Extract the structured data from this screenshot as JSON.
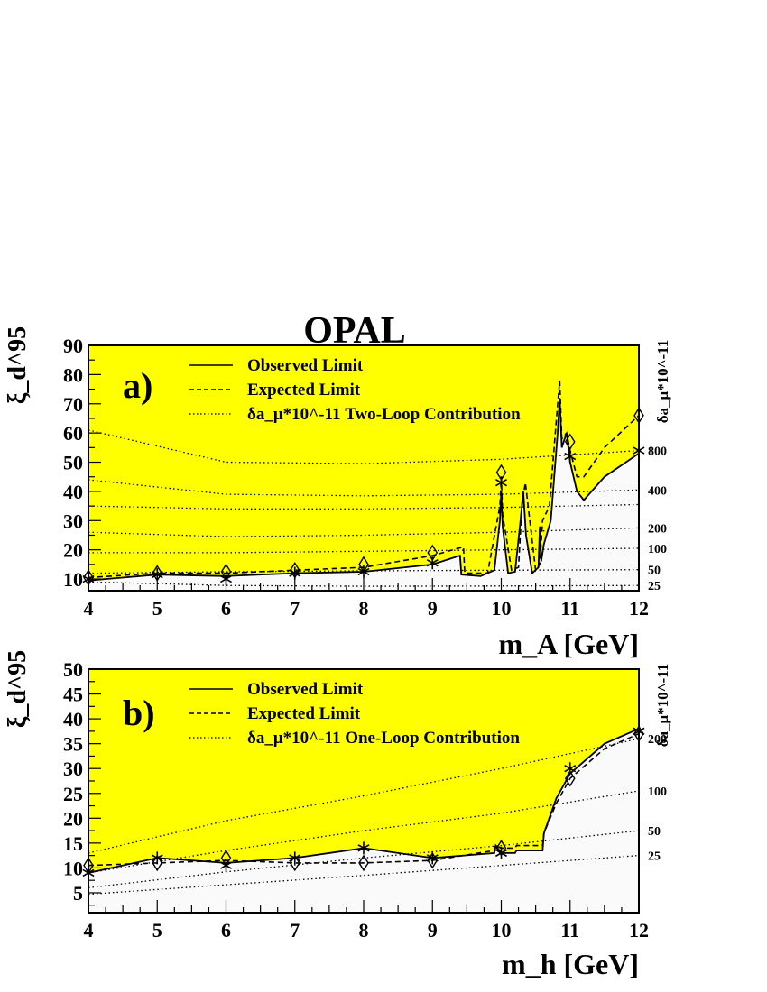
{
  "figure_title": "OPAL",
  "colors": {
    "excluded_fill": "#ffff00",
    "allowed_fill": "#fafafa",
    "line": "#000000"
  },
  "chart_data": [
    {
      "panel_label": "a)",
      "type": "line",
      "xlabel": "m_A [GeV]",
      "ylabel": "ξ_d^95",
      "right_axis_label": "δa_μ*10^-11",
      "xlim": [
        4,
        12
      ],
      "ylim": [
        6,
        90
      ],
      "x_ticks": [
        4,
        5,
        6,
        7,
        8,
        9,
        10,
        11,
        12
      ],
      "y_ticks": [
        10,
        20,
        30,
        40,
        50,
        60,
        70,
        80,
        90
      ],
      "legend": [
        {
          "style": "solid",
          "label": "Observed Limit"
        },
        {
          "style": "dashed",
          "label": "Expected Limit"
        },
        {
          "style": "dotted",
          "label": "δa_μ*10^-11 Two-Loop Contribution"
        }
      ],
      "series": [
        {
          "name": "Observed Limit",
          "style": "solid",
          "x": [
            4,
            5,
            6,
            7,
            8,
            9,
            9.4,
            9.42,
            9.7,
            9.9,
            9.98,
            10.0,
            10.02,
            10.1,
            10.2,
            10.28,
            10.32,
            10.36,
            10.45,
            10.54,
            10.56,
            10.58,
            10.62,
            10.72,
            10.82,
            10.85,
            10.88,
            10.95,
            11.0,
            11.1,
            11.2,
            11.5,
            12
          ],
          "y": [
            9.5,
            11.5,
            11,
            12,
            12.5,
            15,
            18,
            11.5,
            11,
            13,
            30,
            40,
            28,
            12,
            12.5,
            30,
            40,
            25,
            12,
            14,
            28,
            16,
            22,
            30,
            60,
            72,
            55,
            60,
            50,
            40,
            37,
            45,
            53
          ]
        },
        {
          "name": "Expected Limit",
          "style": "dashed",
          "x": [
            4,
            5,
            6,
            7,
            8,
            9,
            9.45,
            9.47,
            9.8,
            9.98,
            10.0,
            10.02,
            10.15,
            10.25,
            10.3,
            10.35,
            10.5,
            10.56,
            10.6,
            10.7,
            10.82,
            10.85,
            10.88,
            10.95,
            11.0,
            11.1,
            11.2,
            11.5,
            12
          ],
          "y": [
            10.5,
            12,
            12,
            13,
            14,
            18,
            21,
            12,
            12,
            35,
            45,
            32,
            13,
            14,
            35,
            43,
            13,
            15,
            30,
            35,
            70,
            78,
            58,
            60,
            54,
            45,
            45,
            55,
            66
          ]
        }
      ],
      "markers": {
        "observed_star": [
          [
            4,
            10
          ],
          [
            5,
            11.5
          ],
          [
            6,
            10
          ],
          [
            7,
            12
          ],
          [
            8,
            12.5
          ],
          [
            9,
            15.5
          ],
          [
            10,
            43
          ],
          [
            11,
            52
          ],
          [
            12,
            54
          ]
        ],
        "expected_diamond": [
          [
            4,
            10.5
          ],
          [
            5,
            12
          ],
          [
            6,
            12.5
          ],
          [
            7,
            13
          ],
          [
            8,
            15
          ],
          [
            9,
            19
          ],
          [
            10,
            46.5
          ],
          [
            11,
            57
          ],
          [
            12,
            66
          ]
        ]
      },
      "contours": [
        {
          "label": "25",
          "x": [
            4,
            6,
            8,
            10,
            12
          ],
          "y": [
            9,
            7.8,
            7.5,
            7.6,
            7.8
          ]
        },
        {
          "label": "50",
          "x": [
            4,
            6,
            8,
            10,
            12
          ],
          "y": [
            12,
            12.5,
            12.8,
            13,
            13.2
          ]
        },
        {
          "label": "100",
          "x": [
            4,
            6,
            8,
            10,
            12
          ],
          "y": [
            19,
            19,
            19.5,
            20,
            20.5
          ]
        },
        {
          "label": "200",
          "x": [
            4,
            6,
            8,
            10,
            12
          ],
          "y": [
            26,
            24.5,
            25,
            26,
            27.5
          ]
        },
        {
          "label": "",
          "x": [
            4,
            6,
            8,
            10,
            12
          ],
          "y": [
            35,
            34,
            34,
            34.5,
            35.5
          ]
        },
        {
          "label": "400",
          "x": [
            4,
            6,
            8,
            10,
            12
          ],
          "y": [
            44,
            39,
            38.5,
            39,
            40.5
          ]
        },
        {
          "label": "800",
          "x": [
            4,
            6,
            8,
            10,
            12
          ],
          "y": [
            61,
            50,
            49.5,
            51,
            54
          ]
        }
      ]
    },
    {
      "panel_label": "b)",
      "type": "line",
      "xlabel": "m_h [GeV]",
      "ylabel": "ξ_d^95",
      "right_axis_label": "δa_μ*10^-11",
      "xlim": [
        4,
        12
      ],
      "ylim": [
        1,
        50
      ],
      "x_ticks": [
        4,
        5,
        6,
        7,
        8,
        9,
        10,
        11,
        12
      ],
      "y_ticks": [
        5,
        10,
        15,
        20,
        25,
        30,
        35,
        40,
        45,
        50
      ],
      "legend": [
        {
          "style": "solid",
          "label": "Observed Limit"
        },
        {
          "style": "dashed",
          "label": "Expected Limit"
        },
        {
          "style": "dotted",
          "label": "δa_μ*10^-11 One-Loop Contribution"
        }
      ],
      "series": [
        {
          "name": "Observed Limit",
          "style": "solid",
          "x": [
            4,
            5,
            6,
            7,
            8,
            9,
            9.9,
            9.92,
            10.0,
            10.2,
            10.22,
            10.6,
            10.62,
            10.8,
            11.0,
            11.5,
            12
          ],
          "y": [
            9,
            12,
            11,
            12,
            14,
            12,
            13,
            14.5,
            13,
            13,
            13.5,
            13.5,
            17,
            24,
            29,
            35,
            38
          ]
        },
        {
          "name": "Expected Limit",
          "style": "dashed",
          "x": [
            4,
            5,
            6,
            7,
            8,
            9,
            9.9,
            9.92,
            10.0,
            10.2,
            10.22,
            10.6,
            10.62,
            10.8,
            11.0,
            11.5,
            12
          ],
          "y": [
            10.5,
            11,
            11.5,
            11,
            11,
            11.5,
            13.5,
            14.5,
            14,
            14,
            14.5,
            14.5,
            17,
            23,
            28,
            34,
            37
          ]
        }
      ],
      "markers": {
        "observed_star": [
          [
            4,
            9
          ],
          [
            5,
            12
          ],
          [
            6,
            10.5
          ],
          [
            7,
            12
          ],
          [
            8,
            14
          ],
          [
            9,
            12
          ],
          [
            10,
            13
          ],
          [
            11,
            30
          ],
          [
            12,
            37.5
          ]
        ],
        "expected_diamond": [
          [
            4,
            10.5
          ],
          [
            5,
            11
          ],
          [
            6,
            12
          ],
          [
            7,
            11
          ],
          [
            8,
            11
          ],
          [
            9,
            11.5
          ],
          [
            10,
            14
          ],
          [
            11,
            28
          ],
          [
            12,
            37
          ]
        ]
      },
      "contours": [
        {
          "label": "25",
          "x": [
            4,
            6,
            8,
            10,
            12
          ],
          "y": [
            4.7,
            6.6,
            8.5,
            10.5,
            12.5
          ]
        },
        {
          "label": "50",
          "x": [
            4,
            6,
            8,
            10,
            12
          ],
          "y": [
            6,
            9.2,
            12,
            14.5,
            17.5
          ]
        },
        {
          "label": "100",
          "x": [
            4,
            6,
            8,
            10,
            12
          ],
          "y": [
            9,
            13.5,
            17.5,
            21,
            25.5
          ]
        },
        {
          "label": "200",
          "x": [
            4,
            6,
            8,
            10,
            12
          ],
          "y": [
            13,
            19.5,
            24.5,
            30,
            36
          ]
        }
      ]
    }
  ]
}
